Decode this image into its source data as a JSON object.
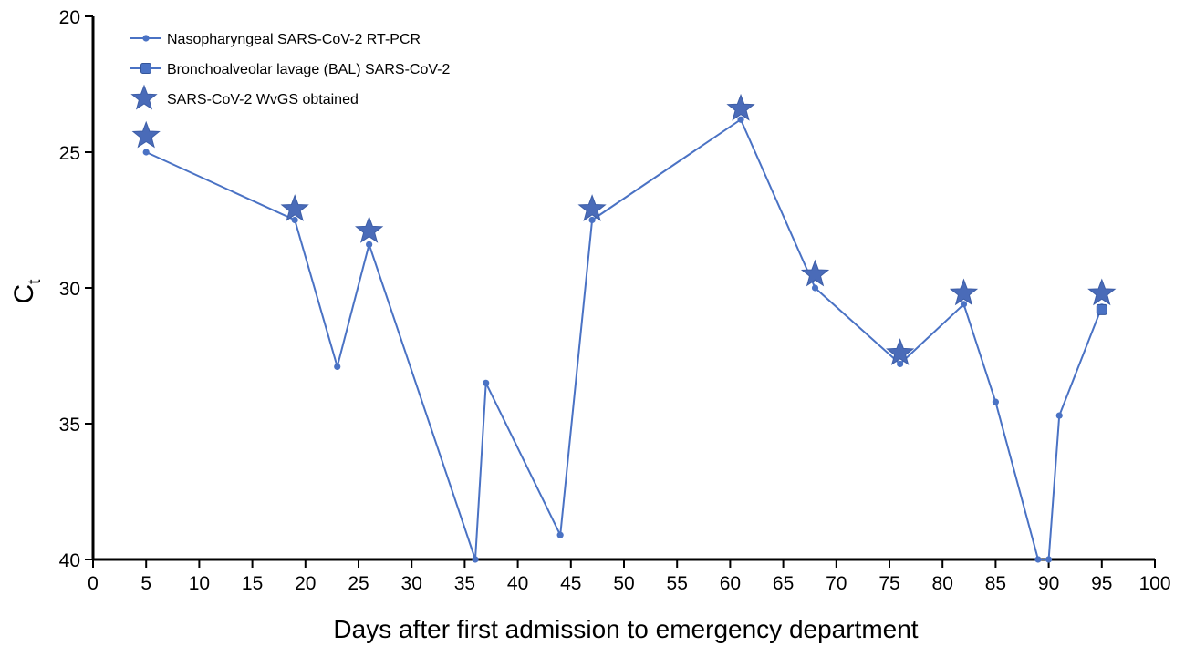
{
  "chart_data": {
    "type": "line",
    "xlabel": "Days after first admission to emergency department",
    "ylabel_main": "C",
    "ylabel_sub": "t",
    "xlim": [
      0,
      100
    ],
    "ylim": [
      20,
      40
    ],
    "y_inverted": true,
    "x_ticks": [
      0,
      5,
      10,
      15,
      20,
      25,
      30,
      35,
      40,
      45,
      50,
      55,
      60,
      65,
      70,
      75,
      80,
      85,
      90,
      95,
      100
    ],
    "y_ticks": [
      20,
      25,
      30,
      35,
      40
    ],
    "grid": false,
    "legend_position": "top-left",
    "colors": {
      "series": "#4a72c4",
      "star": "#4a6bb8",
      "axis": "#000000"
    },
    "series": [
      {
        "name": "Nasopharyngeal SARS-CoV-2 RT-PCR",
        "marker": "circle",
        "x": [
          5,
          19,
          23,
          26,
          36,
          37,
          44,
          47,
          61,
          68,
          76,
          82,
          85,
          89,
          90,
          91,
          95
        ],
        "y": [
          25.0,
          27.5,
          32.9,
          28.4,
          40.0,
          33.5,
          39.1,
          27.5,
          23.8,
          30.0,
          32.8,
          30.6,
          34.2,
          40.0,
          40.0,
          34.7,
          30.7
        ]
      },
      {
        "name": "Bronchoalveolar lavage (BAL) SARS-CoV-2",
        "marker": "square",
        "x": [
          95
        ],
        "y": [
          30.8
        ]
      },
      {
        "name": "SARS-CoV-2 WvGS obtained",
        "marker": "star",
        "x": [
          5,
          19,
          26,
          47,
          61,
          68,
          76,
          82,
          95
        ],
        "y": [
          24.4,
          27.1,
          27.9,
          27.1,
          23.4,
          29.5,
          32.4,
          30.2,
          30.2
        ]
      }
    ]
  }
}
